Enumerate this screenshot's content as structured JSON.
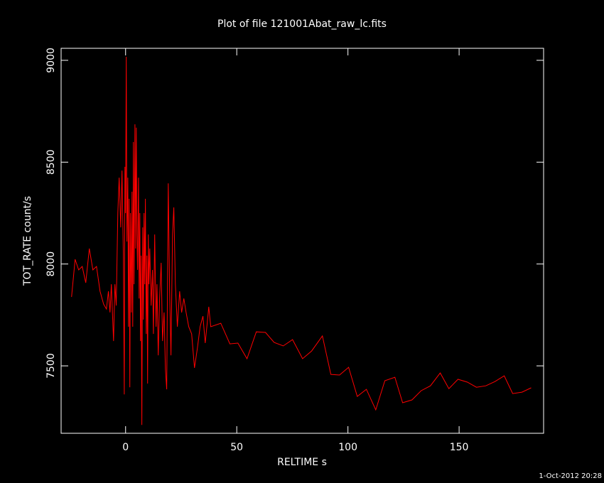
{
  "chart_data": {
    "type": "line",
    "title": "Plot of file 121001Abat_raw_lc.fits",
    "x_label": "RELTIME  s",
    "y_label": "TOT_RATE  count/s",
    "timestamp": "1-Oct-2012 20:28",
    "xlim": [
      -29,
      188
    ],
    "ylim": [
      7169,
      9059
    ],
    "xticks": [
      0,
      50,
      100,
      150
    ],
    "yticks": [
      7500,
      8000,
      8500,
      9000
    ],
    "series": [
      {
        "color": "#ff0000",
        "x": [
          -24.3,
          -22.7,
          -21.1,
          -19.5,
          -17.9,
          -16.3,
          -14.7,
          -13.1,
          -11.5,
          -9.9,
          -8.6,
          -7.7,
          -7.0,
          -6.4,
          -5.8,
          -5.4,
          -4.8,
          -4.2,
          -3.5,
          -2.9,
          -2.2,
          -1.6,
          -1.0,
          -0.6,
          -0.3,
          0,
          0.3,
          0.6,
          1.0,
          1.3,
          1.6,
          1.9,
          2.2,
          2.6,
          2.9,
          3.2,
          3.5,
          3.8,
          4.2,
          4.5,
          4.8,
          5.1,
          5.4,
          5.8,
          6.1,
          6.4,
          6.7,
          7.0,
          7.3,
          7.7,
          8.0,
          8.3,
          8.6,
          8.9,
          9.3,
          9.6,
          9.9,
          10.2,
          10.5,
          10.9,
          11.5,
          12.1,
          12.5,
          13.1,
          13.7,
          14.1,
          14.7,
          15.3,
          16.0,
          16.6,
          17.3,
          17.9,
          18.5,
          19.2,
          19.8,
          20.4,
          21.1,
          21.7,
          22.4,
          23.3,
          24.3,
          25.2,
          26.2,
          27.2,
          28.4,
          29.7,
          31.0,
          32.3,
          33.5,
          34.8,
          35.8,
          36.7,
          37.4,
          38.3,
          42.8,
          46.9,
          50.5,
          54.6,
          58.8,
          62.9,
          66.8,
          70.9,
          75.1,
          79.6,
          83.7,
          88.5,
          92.3,
          96.2,
          100.3,
          104.2,
          108.3,
          112.5,
          116.6,
          121.1,
          124.6,
          128.8,
          132.9,
          137.1,
          141.5,
          145.4,
          149.5,
          153.7,
          157.8,
          162.0,
          166.1,
          170.3,
          174.1,
          178.3,
          182.4
        ],
        "values": [
          7838,
          8023,
          7971,
          7988,
          7908,
          8076,
          7971,
          7988,
          7866,
          7803,
          7779,
          7866,
          7762,
          7901,
          7727,
          7622,
          7901,
          7796,
          8250,
          8424,
          8180,
          8459,
          8041,
          7360,
          8477,
          8250,
          9017,
          8110,
          8424,
          7692,
          8320,
          7395,
          8250,
          7762,
          8355,
          7692,
          8599,
          7901,
          8686,
          8076,
          8669,
          8145,
          7971,
          8424,
          7831,
          8250,
          7622,
          8041,
          7210,
          8180,
          7727,
          8250,
          7901,
          8320,
          7657,
          8041,
          7413,
          8145,
          7901,
          8076,
          7796,
          7971,
          7657,
          8145,
          7692,
          7901,
          7552,
          7831,
          8006,
          7622,
          7762,
          7483,
          7385,
          8396,
          7866,
          7552,
          8145,
          8278,
          7901,
          7692,
          7866,
          7762,
          7831,
          7762,
          7692,
          7657,
          7490,
          7587,
          7692,
          7744,
          7612,
          7709,
          7790,
          7692,
          7709,
          7608,
          7612,
          7535,
          7667,
          7664,
          7615,
          7598,
          7629,
          7535,
          7573,
          7647,
          7458,
          7455,
          7493,
          7350,
          7385,
          7284,
          7427,
          7444,
          7319,
          7333,
          7378,
          7402,
          7465,
          7388,
          7434,
          7420,
          7395,
          7402,
          7423,
          7451,
          7364,
          7371,
          7392
        ]
      }
    ]
  }
}
